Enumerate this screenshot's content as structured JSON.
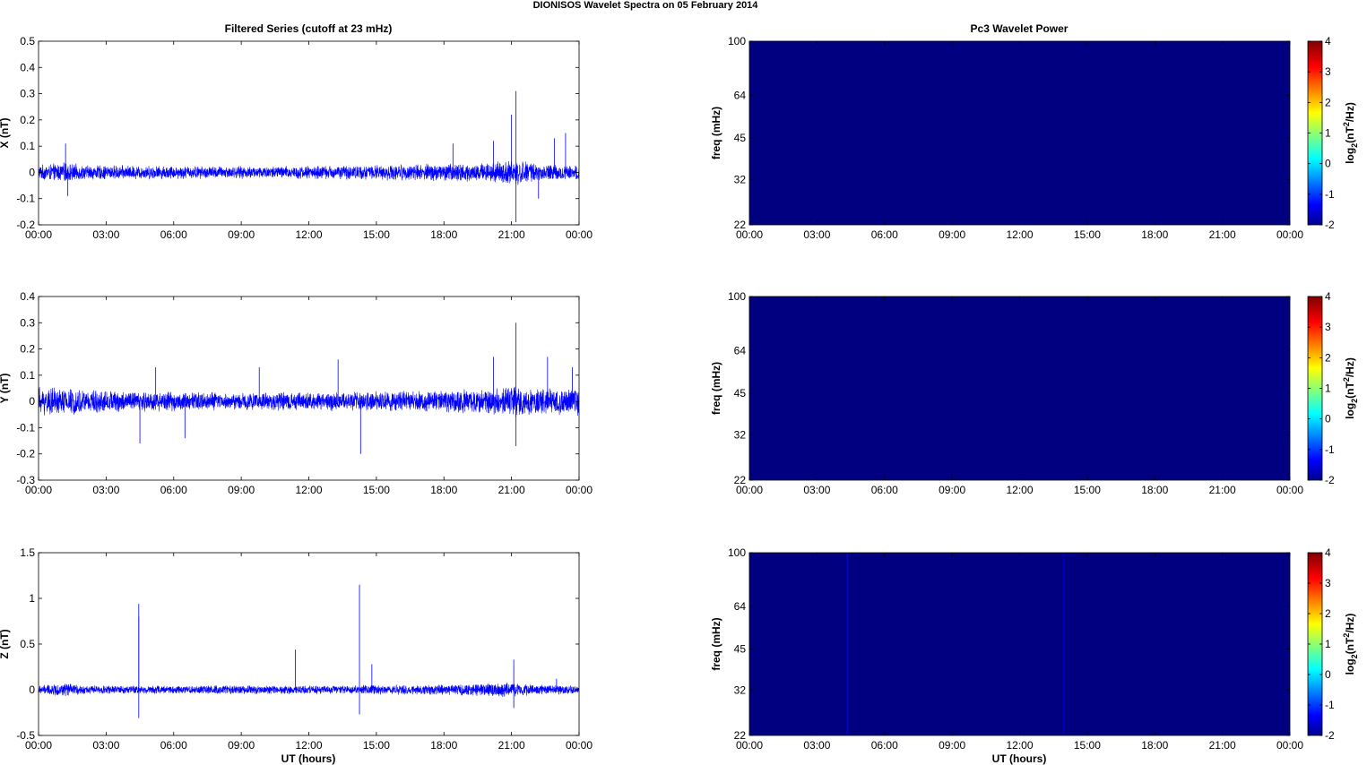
{
  "figure": {
    "title": "DIONISOS Wavelet Spectra on 05 February  2014",
    "left_title": "Filtered Series (cutoff at 23 mHz)",
    "right_title": "Pc3 Wavelet Power",
    "xlabel": "UT (hours)"
  },
  "colors": {
    "series": "#0000ff",
    "background_power": "#00008f",
    "stripe": "#0a2bd6"
  },
  "chart_data": [
    {
      "type": "line",
      "name": "x-series",
      "ylabel": "X (nT)",
      "ylim": [
        -0.2,
        0.5
      ],
      "yticks": [
        -0.2,
        -0.1,
        0,
        0.1,
        0.2,
        0.3,
        0.4,
        0.5
      ],
      "ytick_labels": [
        "-0.2",
        "-0.1",
        "0",
        "0.1",
        "0.2",
        "0.3",
        "0.4",
        "0.5"
      ],
      "xlim": [
        0,
        24
      ],
      "xticks": [
        0,
        3,
        6,
        9,
        12,
        15,
        18,
        21,
        24
      ],
      "xtick_labels": [
        "00:00",
        "03:00",
        "06:00",
        "09:00",
        "12:00",
        "15:00",
        "18:00",
        "21:00",
        "00:00"
      ],
      "noise_amplitude": [
        [
          0,
          0.03
        ],
        [
          1.2,
          0.04
        ],
        [
          2,
          0.03
        ],
        [
          9,
          0.025
        ],
        [
          15,
          0.03
        ],
        [
          17,
          0.035
        ],
        [
          20,
          0.04
        ],
        [
          21.5,
          0.05
        ],
        [
          22,
          0.035
        ],
        [
          24,
          0.03
        ]
      ],
      "spikes": [
        [
          1.2,
          0.11
        ],
        [
          1.3,
          -0.09
        ],
        [
          18.4,
          0.11
        ],
        [
          20.2,
          0.12
        ],
        [
          21.0,
          0.22
        ],
        [
          21.2,
          0.31
        ],
        [
          21.2,
          -0.19
        ],
        [
          22.9,
          0.13
        ],
        [
          23.4,
          0.15
        ],
        [
          22.2,
          -0.1
        ]
      ]
    },
    {
      "type": "line",
      "name": "y-series",
      "ylabel": "Y (nT)",
      "ylim": [
        -0.3,
        0.4
      ],
      "yticks": [
        -0.3,
        -0.2,
        -0.1,
        0,
        0.1,
        0.2,
        0.3,
        0.4
      ],
      "ytick_labels": [
        "-0.3",
        "-0.2",
        "-0.1",
        "0",
        "0.1",
        "0.2",
        "0.3",
        "0.4"
      ],
      "xlim": [
        0,
        24
      ],
      "xticks": [
        0,
        3,
        6,
        9,
        12,
        15,
        18,
        21,
        24
      ],
      "xtick_labels": [
        "00:00",
        "03:00",
        "06:00",
        "09:00",
        "12:00",
        "15:00",
        "18:00",
        "21:00",
        "00:00"
      ],
      "noise_amplitude": [
        [
          0,
          0.06
        ],
        [
          3,
          0.045
        ],
        [
          9,
          0.035
        ],
        [
          15,
          0.04
        ],
        [
          18,
          0.045
        ],
        [
          20,
          0.05
        ],
        [
          21.2,
          0.07
        ],
        [
          22,
          0.05
        ],
        [
          24,
          0.06
        ]
      ],
      "spikes": [
        [
          4.5,
          -0.16
        ],
        [
          5.2,
          0.13
        ],
        [
          6.5,
          -0.14
        ],
        [
          9.8,
          0.13
        ],
        [
          13.3,
          0.16
        ],
        [
          14.3,
          -0.2
        ],
        [
          20.2,
          0.17
        ],
        [
          21.2,
          0.3
        ],
        [
          21.2,
          -0.17
        ],
        [
          22.6,
          0.17
        ],
        [
          23.7,
          0.13
        ]
      ]
    },
    {
      "type": "line",
      "name": "z-series",
      "ylabel": "Z (nT)",
      "ylim": [
        -0.5,
        1.5
      ],
      "yticks": [
        -0.5,
        0,
        0.5,
        1,
        1.5
      ],
      "ytick_labels": [
        "-0.5",
        "0",
        "0.5",
        "1",
        "1.5"
      ],
      "xlim": [
        0,
        24
      ],
      "xticks": [
        0,
        3,
        6,
        9,
        12,
        15,
        18,
        21,
        24
      ],
      "xtick_labels": [
        "00:00",
        "03:00",
        "06:00",
        "09:00",
        "12:00",
        "15:00",
        "18:00",
        "21:00",
        "00:00"
      ],
      "noise_amplitude": [
        [
          0,
          0.05
        ],
        [
          1.2,
          0.08
        ],
        [
          2,
          0.05
        ],
        [
          12,
          0.05
        ],
        [
          18,
          0.06
        ],
        [
          21,
          0.09
        ],
        [
          22,
          0.06
        ],
        [
          24,
          0.05
        ]
      ],
      "spikes": [
        [
          4.45,
          0.94
        ],
        [
          4.45,
          0.8
        ],
        [
          4.45,
          -0.31
        ],
        [
          11.4,
          0.44
        ],
        [
          14.25,
          1.15
        ],
        [
          14.25,
          -0.27
        ],
        [
          14.8,
          0.28
        ],
        [
          21.1,
          0.33
        ],
        [
          21.1,
          -0.2
        ],
        [
          23.0,
          0.12
        ]
      ]
    },
    {
      "type": "heatmap",
      "name": "x-power",
      "ylabel": "freq (mHz)",
      "yscale": "log",
      "ylim": [
        22,
        100
      ],
      "yticks": [
        22,
        32,
        45,
        64,
        100
      ],
      "ytick_labels": [
        "22",
        "32",
        "45",
        "64",
        "100"
      ],
      "xlim": [
        0,
        24
      ],
      "xticks": [
        0,
        3,
        6,
        9,
        12,
        15,
        18,
        21,
        24
      ],
      "xtick_labels": [
        "00:00",
        "03:00",
        "06:00",
        "09:00",
        "12:00",
        "15:00",
        "18:00",
        "21:00",
        "00:00"
      ],
      "value": -2,
      "stripes": [],
      "colorbar_label": "log2(nT2/Hz)",
      "clim": [
        -2,
        4
      ],
      "cticks": [
        -2,
        -1,
        0,
        1,
        2,
        3,
        4
      ],
      "ctick_labels": [
        "-2",
        "-1",
        "0",
        "1",
        "2",
        "3",
        "4"
      ]
    },
    {
      "type": "heatmap",
      "name": "y-power",
      "ylabel": "freq (mHz)",
      "yscale": "log",
      "ylim": [
        22,
        100
      ],
      "yticks": [
        22,
        32,
        45,
        64,
        100
      ],
      "ytick_labels": [
        "22",
        "32",
        "45",
        "64",
        "100"
      ],
      "xlim": [
        0,
        24
      ],
      "xticks": [
        0,
        3,
        6,
        9,
        12,
        15,
        18,
        21,
        24
      ],
      "xtick_labels": [
        "00:00",
        "03:00",
        "06:00",
        "09:00",
        "12:00",
        "15:00",
        "18:00",
        "21:00",
        "00:00"
      ],
      "value": -2,
      "stripes": [],
      "colorbar_label": "log2(nT2/Hz)",
      "clim": [
        -2,
        4
      ],
      "cticks": [
        -2,
        -1,
        0,
        1,
        2,
        3,
        4
      ],
      "ctick_labels": [
        "-2",
        "-1",
        "0",
        "1",
        "2",
        "3",
        "4"
      ]
    },
    {
      "type": "heatmap",
      "name": "z-power",
      "ylabel": "freq (mHz)",
      "yscale": "log",
      "ylim": [
        22,
        100
      ],
      "yticks": [
        22,
        32,
        45,
        64,
        100
      ],
      "ytick_labels": [
        "22",
        "32",
        "45",
        "64",
        "100"
      ],
      "xlim": [
        0,
        24
      ],
      "xticks": [
        0,
        3,
        6,
        9,
        12,
        15,
        18,
        21,
        24
      ],
      "xtick_labels": [
        "00:00",
        "03:00",
        "06:00",
        "09:00",
        "12:00",
        "15:00",
        "18:00",
        "21:00",
        "00:00"
      ],
      "value": -2,
      "stripes": [
        {
          "x": 4.35,
          "value": -1.4
        },
        {
          "x": 13.95,
          "value": -1.7
        }
      ],
      "colorbar_label": "log2(nT2/Hz)",
      "clim": [
        -2,
        4
      ],
      "cticks": [
        -2,
        -1,
        0,
        1,
        2,
        3,
        4
      ],
      "ctick_labels": [
        "-2",
        "-1",
        "0",
        "1",
        "2",
        "3",
        "4"
      ]
    }
  ]
}
